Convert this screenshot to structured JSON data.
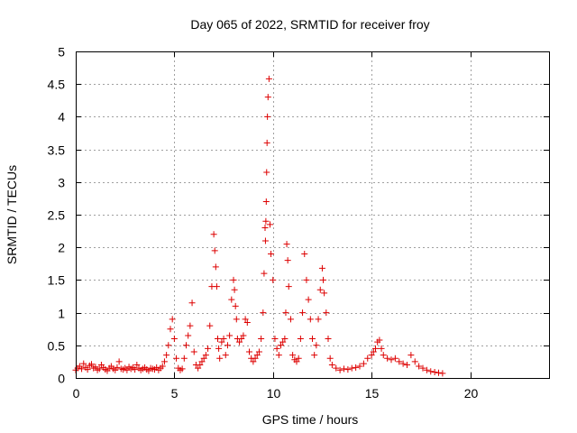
{
  "chart_data": {
    "type": "scatter",
    "title": "Day 065 of 2022, SRMTID for receiver froy",
    "xlabel": "GPS time / hours",
    "ylabel": "SRMTID / TECUs",
    "xlim": [
      0,
      24
    ],
    "ylim": [
      0,
      5
    ],
    "xticks": [
      0,
      5,
      10,
      15,
      20
    ],
    "yticks": [
      0,
      0.5,
      1,
      1.5,
      2,
      2.5,
      3,
      3.5,
      4,
      4.5,
      5
    ],
    "xtick_labels": [
      "0",
      "5",
      "10",
      "15",
      "20"
    ],
    "ytick_labels": [
      "0",
      "0.5",
      "1",
      "1.5",
      "2",
      "2.5",
      "3",
      "3.5",
      "4",
      "4.5",
      "5"
    ],
    "grid": true,
    "marker": "plus",
    "marker_color": "#dd0000",
    "series": [
      {
        "x": [
          0.0,
          0.1,
          0.2,
          0.3,
          0.4,
          0.5,
          0.6,
          0.7,
          0.8,
          0.9,
          1.0,
          1.1,
          1.2,
          1.3,
          1.4,
          1.5,
          1.6,
          1.7,
          1.8,
          1.9,
          2.0,
          2.1,
          2.2,
          2.3,
          2.4,
          2.5,
          2.6,
          2.7,
          2.8,
          2.9,
          3.0,
          3.1,
          3.2,
          3.3,
          3.4,
          3.5,
          3.6,
          3.7,
          3.8,
          3.9,
          4.0,
          4.1,
          4.2,
          4.3,
          4.4,
          4.5,
          4.6,
          4.7,
          4.8,
          4.9,
          5.0,
          5.1,
          5.2,
          5.3,
          5.4,
          5.5,
          5.6,
          5.7,
          5.8,
          5.9,
          6.0,
          6.1,
          6.2,
          6.3,
          6.4,
          6.5,
          6.6,
          6.7,
          6.8,
          6.9,
          7.0,
          7.05,
          7.1,
          7.15,
          7.2,
          7.25,
          7.3,
          7.4,
          7.5,
          7.6,
          7.7,
          7.8,
          7.9,
          8.0,
          8.05,
          8.1,
          8.15,
          8.2,
          8.3,
          8.4,
          8.5,
          8.6,
          8.7,
          8.8,
          8.9,
          9.0,
          9.1,
          9.2,
          9.3,
          9.4,
          9.5,
          9.55,
          9.6,
          9.62,
          9.64,
          9.66,
          9.68,
          9.7,
          9.72,
          9.75,
          9.8,
          9.85,
          9.9,
          10.0,
          10.1,
          10.2,
          10.3,
          10.4,
          10.5,
          10.6,
          10.65,
          10.7,
          10.75,
          10.8,
          10.9,
          11.0,
          11.1,
          11.2,
          11.3,
          11.4,
          11.5,
          11.6,
          11.7,
          11.8,
          11.9,
          12.0,
          12.1,
          12.2,
          12.3,
          12.4,
          12.5,
          12.55,
          12.6,
          12.7,
          12.8,
          12.9,
          13.0,
          13.2,
          13.4,
          13.6,
          13.8,
          14.0,
          14.2,
          14.4,
          14.6,
          14.8,
          15.0,
          15.1,
          15.2,
          15.3,
          15.4,
          15.5,
          15.6,
          15.8,
          16.0,
          16.2,
          16.4,
          16.6,
          16.8,
          17.0,
          17.2,
          17.4,
          17.6,
          17.8,
          18.0,
          18.2,
          18.4,
          18.6
        ],
        "y": [
          0.12,
          0.15,
          0.18,
          0.14,
          0.22,
          0.16,
          0.13,
          0.19,
          0.21,
          0.15,
          0.17,
          0.12,
          0.14,
          0.2,
          0.16,
          0.13,
          0.11,
          0.15,
          0.18,
          0.14,
          0.12,
          0.16,
          0.25,
          0.14,
          0.13,
          0.15,
          0.12,
          0.17,
          0.14,
          0.16,
          0.13,
          0.2,
          0.15,
          0.12,
          0.14,
          0.16,
          0.13,
          0.11,
          0.15,
          0.14,
          0.13,
          0.16,
          0.12,
          0.15,
          0.18,
          0.25,
          0.35,
          0.5,
          0.75,
          0.9,
          0.6,
          0.3,
          0.15,
          0.12,
          0.14,
          0.3,
          0.5,
          0.65,
          0.8,
          1.15,
          0.4,
          0.2,
          0.15,
          0.2,
          0.25,
          0.3,
          0.35,
          0.45,
          0.8,
          1.4,
          2.2,
          1.95,
          1.7,
          1.4,
          0.6,
          0.45,
          0.3,
          0.55,
          0.6,
          0.35,
          0.5,
          0.65,
          1.2,
          1.5,
          1.35,
          1.1,
          0.9,
          0.6,
          0.55,
          0.6,
          0.65,
          0.9,
          0.85,
          0.4,
          0.3,
          0.25,
          0.3,
          0.35,
          0.4,
          0.6,
          1.0,
          1.6,
          2.3,
          2.1,
          2.4,
          2.7,
          3.15,
          3.6,
          4.0,
          4.3,
          4.58,
          2.35,
          1.9,
          1.5,
          0.6,
          0.45,
          0.35,
          0.5,
          0.55,
          0.6,
          1.0,
          2.05,
          1.8,
          1.4,
          0.9,
          0.35,
          0.28,
          0.25,
          0.3,
          0.6,
          1.0,
          1.9,
          1.5,
          1.2,
          0.9,
          0.6,
          0.35,
          0.5,
          0.9,
          1.35,
          1.68,
          1.5,
          1.3,
          1.0,
          0.6,
          0.3,
          0.2,
          0.15,
          0.12,
          0.14,
          0.13,
          0.15,
          0.16,
          0.18,
          0.22,
          0.3,
          0.35,
          0.4,
          0.45,
          0.55,
          0.58,
          0.45,
          0.35,
          0.3,
          0.28,
          0.3,
          0.25,
          0.22,
          0.2,
          0.35,
          0.25,
          0.18,
          0.15,
          0.12,
          0.1,
          0.09,
          0.08,
          0.07
        ]
      }
    ]
  }
}
